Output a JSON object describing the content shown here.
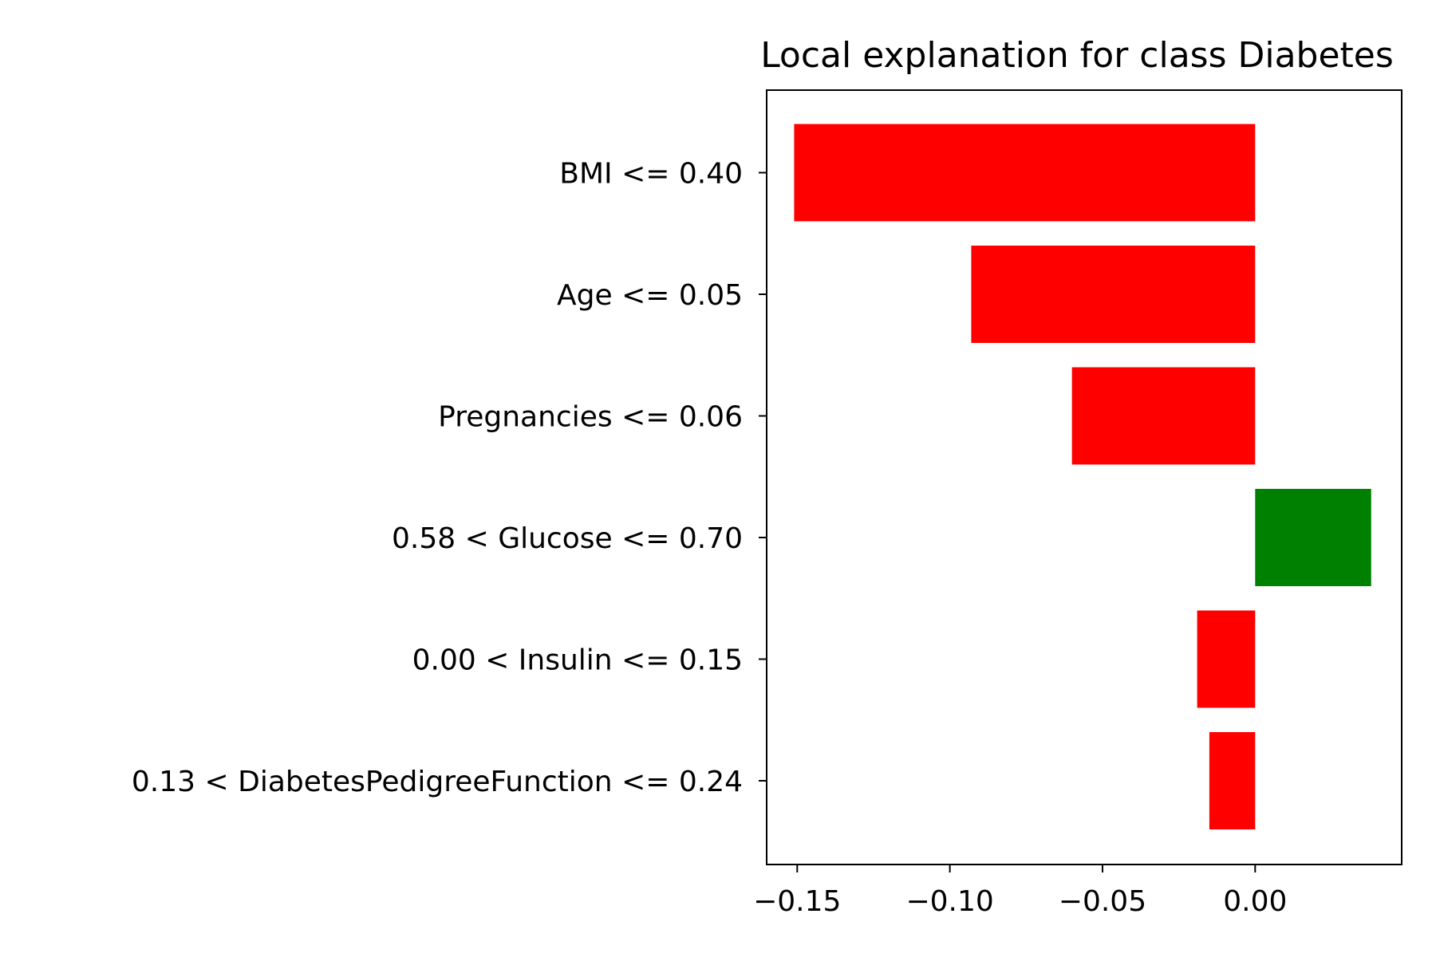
{
  "chart_data": {
    "type": "bar",
    "orientation": "horizontal",
    "title": "Local explanation for class Diabetes",
    "xlabel": "",
    "ylabel": "",
    "xlim": [
      -0.16,
      0.048
    ],
    "xticks": [
      -0.15,
      -0.1,
      -0.05,
      0.0
    ],
    "xtick_labels": [
      "−0.15",
      "−0.10",
      "−0.05",
      "0.00"
    ],
    "grid": false,
    "legend": "none",
    "colors": {
      "positive": "#008000",
      "negative": "#ff0000"
    },
    "categories": [
      "BMI <= 0.40",
      "Age <= 0.05",
      "Pregnancies <= 0.06",
      "0.58 < Glucose <= 0.70",
      "0.00 < Insulin <= 0.15",
      "0.13 < DiabetesPedigreeFunction <= 0.24"
    ],
    "values": [
      -0.151,
      -0.093,
      -0.06,
      0.038,
      -0.019,
      -0.015
    ]
  }
}
